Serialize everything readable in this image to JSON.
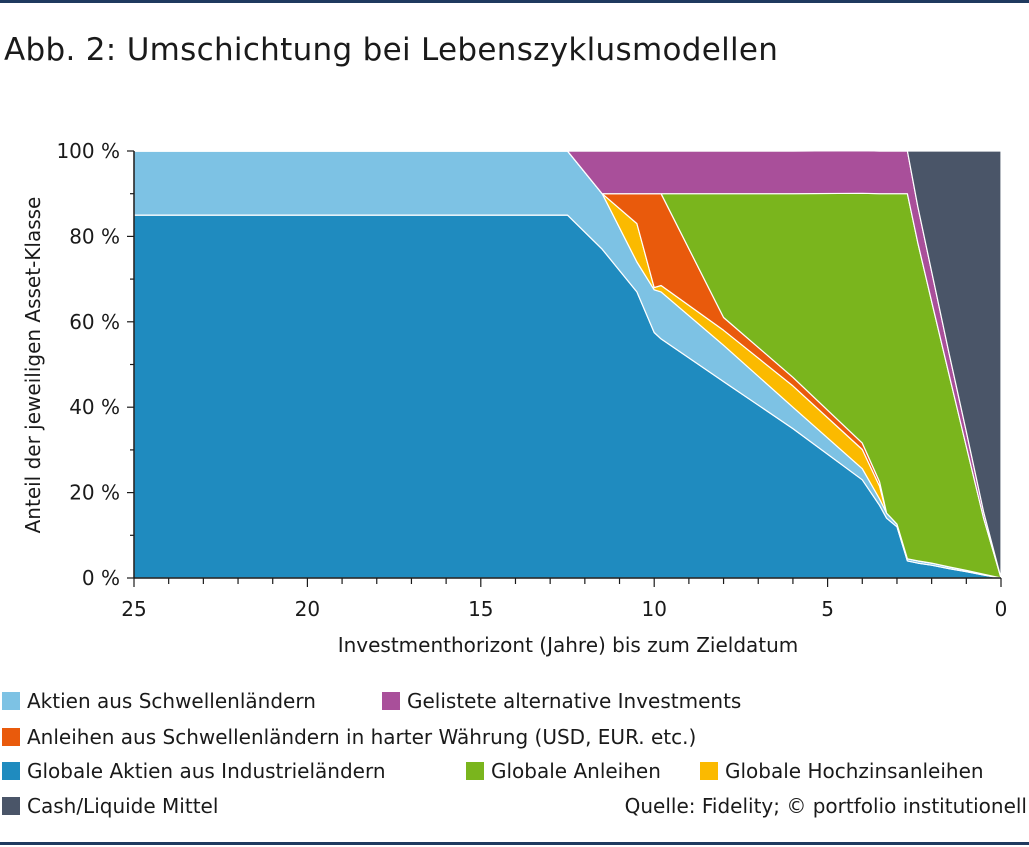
{
  "title": "Abb. 2: Umschichtung bei Lebenszyklusmodellen",
  "source": "Quelle: Fidelity; © portfolio institutionell",
  "colors": {
    "em_equity": "#7dc2e4",
    "listed_alternatives": "#a94f9a",
    "em_hard_currency_bonds": "#e95a0c",
    "dev_equity": "#1f8bbf",
    "global_bonds": "#7ab51d",
    "high_yield": "#fbba00",
    "cash": "#4a5568",
    "rule": "#1f3a5f"
  },
  "chart_data": {
    "type": "area",
    "stacked": true,
    "title": "",
    "xlabel": "Investmenthorizont (Jahre) bis zum Zieldatum",
    "ylabel": "Anteil der jeweiligen Asset-Klasse",
    "xlim": [
      25,
      0
    ],
    "ylim": [
      0,
      100
    ],
    "x_ticks": [
      "25",
      "20",
      "15",
      "10",
      "5",
      "0"
    ],
    "y_ticks": [
      "0 %",
      "20 %",
      "40 %",
      "60 %",
      "80 %",
      "100 %"
    ],
    "grid": false,
    "legend_position": "bottom",
    "x": [
      25,
      12.5,
      11.5,
      10.5,
      10,
      9.8,
      8,
      6,
      4,
      3.5,
      3.3,
      3,
      2.7,
      2.4,
      2,
      1.5,
      1,
      0.5,
      0
    ],
    "series": [
      {
        "name": "Globale Aktien aus Industrieländern",
        "color_key": "dev_equity",
        "values": [
          85,
          85,
          77,
          67,
          57.5,
          56,
          46,
          35,
          23,
          17,
          14,
          12,
          4,
          3.5,
          3,
          2.2,
          1.5,
          0.7,
          0
        ]
      },
      {
        "name": "Aktien aus Schwellenländern",
        "color_key": "em_equity",
        "values": [
          15,
          15,
          13,
          7,
          10,
          11,
          8.5,
          5,
          2.6,
          1.5,
          1.2,
          0.6,
          0.5,
          0.5,
          0.5,
          0.4,
          0.3,
          0.2,
          0
        ]
      },
      {
        "name": "Globale Hochzinsanleihen",
        "color_key": "high_yield",
        "values": [
          0,
          0,
          0,
          9,
          0.5,
          1.5,
          3.5,
          5,
          4.5,
          3,
          0,
          0,
          0,
          0,
          0,
          0,
          0,
          0,
          0
        ]
      },
      {
        "name": "Anleihen aus Schwellenländern in harter Währung (USD, EUR. etc.)",
        "color_key": "em_hard_currency_bonds",
        "values": [
          0,
          0,
          0,
          7,
          22,
          21.5,
          3,
          2,
          1.5,
          1,
          0,
          0,
          0,
          0,
          0,
          0,
          0,
          0,
          0
        ]
      },
      {
        "name": "Globale Anleihen",
        "color_key": "global_bonds",
        "values": [
          0,
          0,
          0,
          0,
          0,
          0,
          29,
          43,
          58.5,
          67.5,
          74.8,
          77.4,
          85.5,
          74.5,
          61.3,
          45.1,
          29,
          13,
          0
        ]
      },
      {
        "name": "Gelistete alternative Investments",
        "color_key": "listed_alternatives",
        "values": [
          0,
          0,
          10,
          10,
          10,
          10,
          10,
          10,
          10,
          10,
          10,
          10,
          10,
          8.5,
          7,
          5,
          3.5,
          1.5,
          0
        ]
      },
      {
        "name": "Cash/Liquide Mittel",
        "color_key": "cash",
        "values": [
          0,
          0,
          0,
          0,
          0,
          0,
          0,
          0,
          0,
          0,
          0,
          0,
          0,
          13,
          28.2,
          47.3,
          65.7,
          84.6,
          100
        ]
      }
    ]
  },
  "legend": [
    {
      "label": "Aktien aus Schwellenländern",
      "color_key": "em_equity"
    },
    {
      "label": "Gelistete alternative Investments",
      "color_key": "listed_alternatives"
    },
    {
      "label": "Anleihen aus Schwellenländern in harter Währung (USD, EUR. etc.)",
      "color_key": "em_hard_currency_bonds"
    },
    {
      "label": "Globale Aktien aus Industrieländern",
      "color_key": "dev_equity"
    },
    {
      "label": "Globale Anleihen",
      "color_key": "global_bonds"
    },
    {
      "label": "Globale Hochzinsanleihen",
      "color_key": "high_yield"
    },
    {
      "label": "Cash/Liquide Mittel",
      "color_key": "cash"
    }
  ]
}
